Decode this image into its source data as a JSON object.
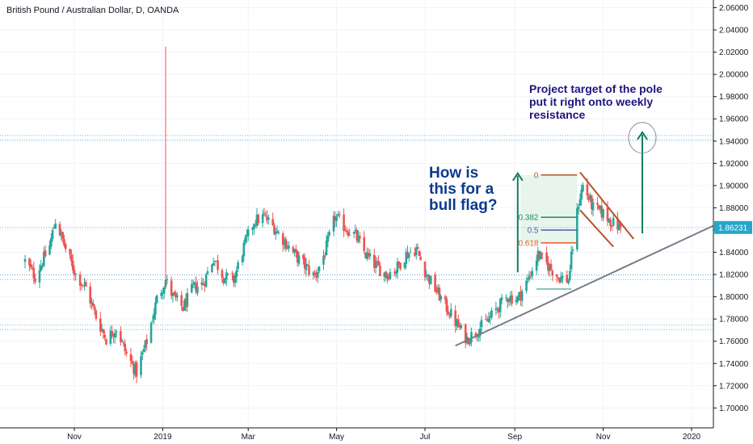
{
  "header": {
    "title": "British Pound / Australian Dollar, D, OANDA"
  },
  "annotations": {
    "target_lines": [
      "Project target of the pole",
      "put it right onto weekly",
      "resistance"
    ],
    "flag_lines": [
      "How is",
      "this for a",
      "bull flag?"
    ]
  },
  "fib": [
    {
      "label": "0",
      "level": 1.9095,
      "color": "#b5542a"
    },
    {
      "label": "0.382",
      "level": 1.8715,
      "color": "#1b8a6b"
    },
    {
      "label": "0.5",
      "level": 1.86,
      "color": "#555b9e"
    },
    {
      "label": "0.618",
      "level": 1.8485,
      "color": "#e05b2b"
    }
  ],
  "colors": {
    "up": "#26a69a",
    "down": "#ef5350",
    "level_line": "#6bb8d6",
    "trend": "#787b86",
    "arrow": "#0e7d5e",
    "flag": "#b5542a",
    "price_tag": "#27a6c9"
  },
  "chart_data": {
    "type": "candlestick",
    "title": "British Pound / Australian Dollar, D, OANDA",
    "y_ticks": [
      "2.06000",
      "2.04000",
      "2.02000",
      "2.00000",
      "1.98000",
      "1.96000",
      "1.94000",
      "1.92000",
      "1.90000",
      "1.88000",
      "1.86000",
      "1.84000",
      "1.82000",
      "1.80000",
      "1.78000",
      "1.76000",
      "1.74000",
      "1.72000",
      "1.70000"
    ],
    "x_ticks": [
      "Nov",
      "2019",
      "Mar",
      "May",
      "Jul",
      "Sep",
      "Nov",
      "2020"
    ],
    "ylim": [
      1.693,
      2.064
    ],
    "last_price": "1.86231",
    "horizontal_levels": [
      1.945,
      1.941,
      1.8195,
      1.8155,
      1.7745,
      1.7705,
      1.8623
    ],
    "trend_line": {
      "from": [
        "2019-07-22",
        1.756
      ],
      "to": [
        "2020-01-31",
        1.873
      ]
    },
    "flag_channel": [
      {
        "from": [
          "2019-10-16",
          1.912
        ],
        "to": [
          "2019-11-22",
          1.852
        ]
      },
      {
        "from": [
          "2019-10-16",
          1.878
        ],
        "to": [
          "2019-11-08",
          1.845
        ]
      }
    ],
    "pole_arrow": {
      "x": "2019-09-03",
      "from": 1.822,
      "to": 1.911
    },
    "target_arrow": {
      "x": "2019-11-28",
      "from": 1.857,
      "to": 1.948
    },
    "target_circle": {
      "center": [
        "2019-11-28",
        1.943
      ]
    },
    "highlight_zone": {
      "from": "2019-09-05",
      "to": "2019-10-14",
      "low": 1.8485,
      "high": 1.9095
    },
    "pole_base_line": {
      "from": "2019-09-16",
      "to": "2019-10-10",
      "value": 1.807
    },
    "spike": {
      "date": "2019-01-03",
      "high": 2.025,
      "low": 1.807
    },
    "waypoints": [
      [
        "2018-09-28",
        1.832
      ],
      [
        "2018-10-05",
        1.818
      ],
      [
        "2018-10-15",
        1.846
      ],
      [
        "2018-10-19",
        1.869
      ],
      [
        "2018-10-26",
        1.843
      ],
      [
        "2018-11-02",
        1.82
      ],
      [
        "2018-11-09",
        1.808
      ],
      [
        "2018-11-16",
        1.782
      ],
      [
        "2018-11-23",
        1.762
      ],
      [
        "2018-11-30",
        1.772
      ],
      [
        "2018-12-07",
        1.748
      ],
      [
        "2018-12-14",
        1.732
      ],
      [
        "2018-12-21",
        1.76
      ],
      [
        "2018-12-28",
        1.798
      ],
      [
        "2019-01-03",
        1.815
      ],
      [
        "2019-01-08",
        1.8
      ],
      [
        "2019-01-15",
        1.79
      ],
      [
        "2019-01-22",
        1.808
      ],
      [
        "2019-01-29",
        1.812
      ],
      [
        "2019-02-05",
        1.835
      ],
      [
        "2019-02-12",
        1.818
      ],
      [
        "2019-02-19",
        1.815
      ],
      [
        "2019-02-26",
        1.845
      ],
      [
        "2019-03-05",
        1.868
      ],
      [
        "2019-03-12",
        1.872
      ],
      [
        "2019-03-19",
        1.862
      ],
      [
        "2019-03-26",
        1.85
      ],
      [
        "2019-04-02",
        1.838
      ],
      [
        "2019-04-09",
        1.828
      ],
      [
        "2019-04-16",
        1.818
      ],
      [
        "2019-04-23",
        1.84
      ],
      [
        "2019-04-30",
        1.872
      ],
      [
        "2019-05-07",
        1.862
      ],
      [
        "2019-05-14",
        1.855
      ],
      [
        "2019-05-21",
        1.838
      ],
      [
        "2019-05-28",
        1.828
      ],
      [
        "2019-06-04",
        1.82
      ],
      [
        "2019-06-11",
        1.825
      ],
      [
        "2019-06-18",
        1.838
      ],
      [
        "2019-06-25",
        1.843
      ],
      [
        "2019-07-02",
        1.82
      ],
      [
        "2019-07-09",
        1.805
      ],
      [
        "2019-07-16",
        1.79
      ],
      [
        "2019-07-23",
        1.775
      ],
      [
        "2019-07-30",
        1.762
      ],
      [
        "2019-08-06",
        1.77
      ],
      [
        "2019-08-13",
        1.778
      ],
      [
        "2019-08-20",
        1.79
      ],
      [
        "2019-08-27",
        1.8
      ],
      [
        "2019-09-03",
        1.798
      ],
      [
        "2019-09-10",
        1.815
      ],
      [
        "2019-09-17",
        1.838
      ],
      [
        "2019-09-24",
        1.828
      ],
      [
        "2019-10-01",
        1.818
      ],
      [
        "2019-10-08",
        1.815
      ],
      [
        "2019-10-15",
        1.885
      ],
      [
        "2019-10-18",
        1.9
      ],
      [
        "2019-10-25",
        1.88
      ],
      [
        "2019-11-01",
        1.875
      ],
      [
        "2019-11-08",
        1.866
      ],
      [
        "2019-11-13",
        1.862
      ]
    ]
  }
}
